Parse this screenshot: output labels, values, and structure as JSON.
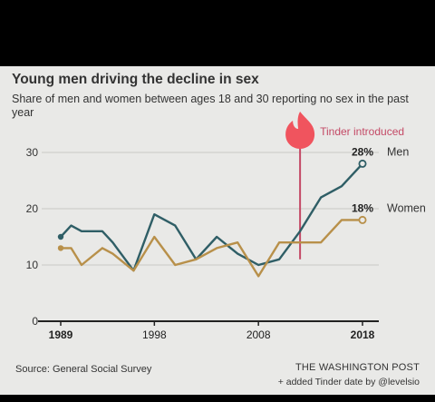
{
  "title": "Young men driving the decline in sex",
  "subtitle": "Share of men and women between ages 18 and 30 reporting no sex in the past year",
  "source": "Source: General Social Survey",
  "publisher": "THE WASHINGTON POST",
  "credit": "+ added Tinder date by @levelsio",
  "annotation": "Tinder introduced",
  "colors": {
    "men": "#2f5e66",
    "women": "#b8904a",
    "tinder": "#c44a66",
    "grid": "#c9c9c6",
    "axis": "#222222",
    "background": "#e9e9e7"
  },
  "chart_data": {
    "type": "line",
    "x_ticks": [
      "1989",
      "1998",
      "2008",
      "2018"
    ],
    "y_ticks": [
      "0",
      "10",
      "20",
      "30"
    ],
    "xlim": [
      1989,
      2018
    ],
    "ylim": [
      0,
      30
    ],
    "grid": true,
    "tinder_year": 2012,
    "series": [
      {
        "name": "Men",
        "end_label": "28%",
        "x": [
          1989,
          1990,
          1991,
          1993,
          1994,
          1996,
          1998,
          2000,
          2002,
          2004,
          2006,
          2008,
          2010,
          2012,
          2014,
          2016,
          2018
        ],
        "values": [
          15,
          17,
          16,
          16,
          14,
          9,
          19,
          17,
          11,
          15,
          12,
          10,
          11,
          16,
          22,
          24,
          28
        ]
      },
      {
        "name": "Women",
        "end_label": "18%",
        "x": [
          1989,
          1990,
          1991,
          1993,
          1994,
          1996,
          1998,
          2000,
          2002,
          2004,
          2006,
          2008,
          2010,
          2012,
          2014,
          2016,
          2018
        ],
        "values": [
          13,
          13,
          10,
          13,
          12,
          9,
          15,
          10,
          11,
          13,
          14,
          8,
          14,
          14,
          14,
          18,
          18
        ]
      }
    ]
  }
}
